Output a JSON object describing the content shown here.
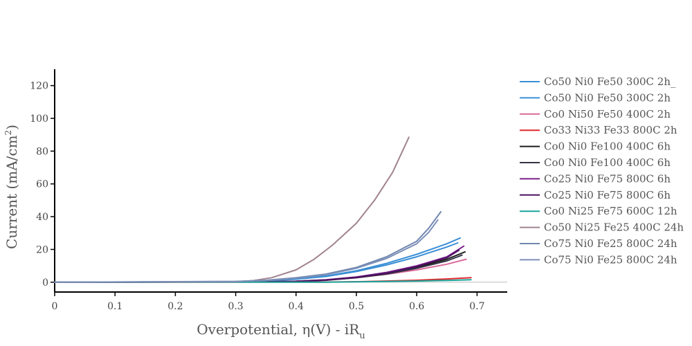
{
  "chart_data": {
    "type": "line",
    "title": "",
    "xlabel_parts": {
      "base": "Overpotential, η(V) - iR",
      "sub": "u"
    },
    "ylabel_parts": {
      "base": "Current (mA/cm",
      "sup": "2",
      "end": ")"
    },
    "xlim": [
      0,
      0.75
    ],
    "ylim": [
      -6,
      130
    ],
    "xticks": [
      0,
      0.1,
      0.2,
      0.3,
      0.4,
      0.5,
      0.6,
      0.7
    ],
    "xtick_labels": [
      "0",
      "0.1",
      "0.2",
      "0.3",
      "0.4",
      "0.5",
      "0.6",
      "0.7"
    ],
    "yticks": [
      0,
      20,
      40,
      60,
      80,
      100,
      120
    ],
    "ytick_labels": [
      "0",
      "20",
      "40",
      "60",
      "80",
      "100",
      "120"
    ],
    "grid": false,
    "zero_line": true,
    "legend_position": "right",
    "series": [
      {
        "name": "Co50 Ni0 Fe50 300C 2h_",
        "color": "#3a8fd6",
        "x": [
          0,
          0.3,
          0.35,
          0.4,
          0.45,
          0.5,
          0.55,
          0.6,
          0.65,
          0.672
        ],
        "y": [
          0,
          0.3,
          0.9,
          2.0,
          3.8,
          7.0,
          11.5,
          17.0,
          23.5,
          27.0
        ]
      },
      {
        "name": "Co50 Ni0 Fe50 300C 2h",
        "color": "#3a8fd6",
        "x": [
          0,
          0.3,
          0.35,
          0.4,
          0.45,
          0.5,
          0.55,
          0.6,
          0.65,
          0.668
        ],
        "y": [
          0,
          0.3,
          0.8,
          1.8,
          3.5,
          6.5,
          10.5,
          15.5,
          21.5,
          24.0
        ]
      },
      {
        "name": "Co0 Ni50 Fe50 400C 2h",
        "color": "#d9699a",
        "x": [
          0,
          0.35,
          0.4,
          0.45,
          0.5,
          0.55,
          0.6,
          0.65,
          0.682
        ],
        "y": [
          0,
          0.2,
          0.6,
          1.3,
          2.8,
          4.8,
          7.5,
          11.0,
          14.0
        ]
      },
      {
        "name": "Co33 Ni33 Fe33 800C 2h",
        "color": "#e0282b",
        "x": [
          0,
          0.45,
          0.5,
          0.55,
          0.6,
          0.65,
          0.69
        ],
        "y": [
          0,
          0.1,
          0.3,
          0.7,
          1.2,
          2.0,
          2.8
        ]
      },
      {
        "name": "Co0 Ni0 Fe100 400C 6h",
        "color": "#1c1c1c",
        "x": [
          0,
          0.35,
          0.4,
          0.45,
          0.5,
          0.55,
          0.6,
          0.65,
          0.68
        ],
        "y": [
          0,
          0.2,
          0.6,
          1.4,
          3.0,
          5.5,
          9.0,
          14.0,
          18.5
        ]
      },
      {
        "name": "Co0 Ni0 Fe100 400C 6h",
        "color": "#333344",
        "x": [
          0,
          0.35,
          0.4,
          0.45,
          0.5,
          0.55,
          0.6,
          0.65,
          0.675
        ],
        "y": [
          0,
          0.2,
          0.5,
          1.2,
          2.7,
          5.0,
          8.5,
          13.0,
          16.5
        ]
      },
      {
        "name": "Co25 Ni0 Fe75 800C 6h",
        "color": "#7b1e8c",
        "x": [
          0,
          0.35,
          0.4,
          0.45,
          0.5,
          0.55,
          0.6,
          0.65,
          0.678
        ],
        "y": [
          0,
          0.2,
          0.6,
          1.5,
          3.2,
          6.0,
          10.0,
          15.5,
          22.0
        ]
      },
      {
        "name": "Co25 Ni0 Fe75 800C 6h",
        "color": "#4b1060",
        "x": [
          0,
          0.35,
          0.4,
          0.45,
          0.5,
          0.55,
          0.6,
          0.65,
          0.67
        ],
        "y": [
          0,
          0.2,
          0.5,
          1.3,
          2.9,
          5.5,
          9.5,
          15.0,
          19.5
        ]
      },
      {
        "name": "Co0 Ni25 Fe75 600C 12h",
        "color": "#1aa39a",
        "x": [
          0,
          0.45,
          0.5,
          0.55,
          0.6,
          0.65,
          0.69
        ],
        "y": [
          0,
          0.05,
          0.2,
          0.4,
          0.7,
          1.1,
          1.5
        ]
      },
      {
        "name": "Co50 Ni25 Fe25 400C 24h",
        "color": "#a08390",
        "x": [
          0,
          0.3,
          0.33,
          0.36,
          0.4,
          0.43,
          0.46,
          0.5,
          0.53,
          0.56,
          0.587
        ],
        "y": [
          0,
          0.3,
          1.0,
          2.8,
          7.5,
          14.0,
          22.5,
          36.0,
          50.0,
          67.0,
          88.5
        ]
      },
      {
        "name": "Co75 Ni0 Fe25 800C 24h",
        "color": "#6f86ae",
        "x": [
          0,
          0.3,
          0.35,
          0.4,
          0.45,
          0.5,
          0.55,
          0.6,
          0.62,
          0.64
        ],
        "y": [
          0,
          0.5,
          1.2,
          2.7,
          5.0,
          9.0,
          15.5,
          25.0,
          33.0,
          43.0
        ]
      },
      {
        "name": "Co75 Ni0 Fe25 800C 24h",
        "color": "#7b8fb8",
        "x": [
          0,
          0.3,
          0.35,
          0.4,
          0.45,
          0.5,
          0.55,
          0.6,
          0.62,
          0.635
        ],
        "y": [
          0,
          0.4,
          1.0,
          2.4,
          4.6,
          8.5,
          14.5,
          23.5,
          30.5,
          38.0
        ]
      }
    ]
  }
}
